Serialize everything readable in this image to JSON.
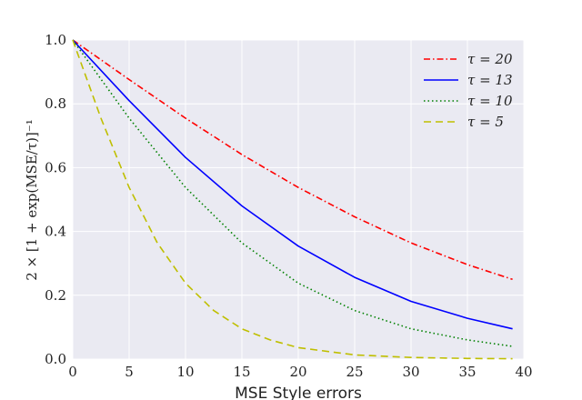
{
  "chart_data": {
    "type": "line",
    "xlabel": "MSE Style errors",
    "ylabel": "2 × [1 + exp(MSE/τ)]⁻¹",
    "xlim": [
      0,
      40
    ],
    "ylim": [
      0,
      1.0
    ],
    "xticks": [
      "0",
      "5",
      "10",
      "15",
      "20",
      "25",
      "30",
      "35",
      "40"
    ],
    "yticks": [
      "0.0",
      "0.2",
      "0.4",
      "0.6",
      "0.8",
      "1.0"
    ],
    "grid": true,
    "legend_position": "top-right",
    "series": [
      {
        "name": "τ = 20",
        "color": "#ff0000",
        "dash": "dashdot",
        "x": [
          0,
          5,
          10,
          15,
          20,
          25,
          30,
          35,
          39
        ],
        "y": [
          1.0,
          0.876,
          0.755,
          0.641,
          0.538,
          0.446,
          0.364,
          0.296,
          0.25
        ]
      },
      {
        "name": "τ = 13",
        "color": "#0000ff",
        "dash": "solid",
        "x": [
          0,
          5,
          10,
          15,
          20,
          25,
          30,
          35,
          39
        ],
        "y": [
          1.0,
          0.81,
          0.632,
          0.48,
          0.354,
          0.256,
          0.181,
          0.128,
          0.095
        ]
      },
      {
        "name": "τ = 10",
        "color": "#008000",
        "dash": "dotted",
        "x": [
          0,
          5,
          10,
          15,
          20,
          25,
          30,
          35,
          39
        ],
        "y": [
          1.0,
          0.755,
          0.538,
          0.364,
          0.238,
          0.152,
          0.095,
          0.06,
          0.04
        ]
      },
      {
        "name": "τ = 5",
        "color": "#bfbf00",
        "dash": "dashed",
        "x": [
          0,
          2.5,
          5,
          7.5,
          10,
          12.5,
          15,
          17.5,
          20,
          25,
          30,
          35,
          39
        ],
        "y": [
          1.0,
          0.755,
          0.538,
          0.364,
          0.238,
          0.152,
          0.095,
          0.06,
          0.036,
          0.013,
          0.005,
          0.002,
          0.001
        ]
      }
    ]
  }
}
